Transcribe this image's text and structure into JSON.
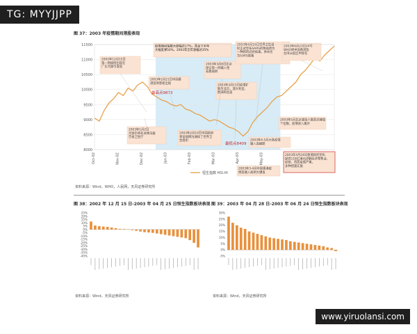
{
  "watermarks": {
    "top": "TG: MYYJJPP",
    "bottom": "www.yiruolansi.com"
  },
  "figures": {
    "fig37_title": "图 37：2003 年疫情期间港股表现",
    "fig37_source": "资料来源：Wind，WHO，人民网，天风证券研究所",
    "fig38_title": "图 38：2002 年 12 月 15 日-2003 年 04 月 25 日恒生指数板块表现",
    "fig38_source": "资料来源：Wind，天风证券研究所",
    "fig39_title": "图 39：2003 年 04 月 28 日-2003 年 06 月 24 日恒生指数板块表现",
    "fig39_source": "资料来源：Wind，天风证券研究所"
  },
  "colors": {
    "line": "#e8a14a",
    "bar": "#e8903c",
    "band": "#d7ecf7",
    "annotation_bg": "#fbe3d3",
    "highlight_border": "#c62828",
    "red_text": "#c62828"
  },
  "chart_data": [
    {
      "type": "line",
      "title": "",
      "ylim": [
        8000,
        11500
      ],
      "yticks": [
        "11500",
        "11000",
        "10500",
        "10000",
        "9500",
        "9000",
        "8500",
        "8000"
      ],
      "xticks": [
        "Oct-02",
        "Nov-02",
        "Dec-02",
        "Jan-03",
        "Feb-03",
        "Mar-03",
        "Apr-03",
        "May-03",
        "Jun-03",
        "Jul-03",
        "Aug-03"
      ],
      "legend": "恒生指数 HSI.HI",
      "series": [
        {
          "name": "恒生指数 HSI.HI",
          "x": [
            0,
            0.2,
            0.4,
            0.6,
            0.8,
            1.0,
            1.2,
            1.4,
            1.6,
            1.8,
            2.0,
            2.2,
            2.4,
            2.6,
            2.8,
            3.0,
            3.2,
            3.4,
            3.6,
            3.8,
            4.0,
            4.2,
            4.4,
            4.6,
            4.8,
            5.0,
            5.2,
            5.4,
            5.6,
            5.8,
            6.0,
            6.2,
            6.4,
            6.6,
            6.8,
            7.0,
            7.2,
            7.4,
            7.6,
            7.8,
            8.0,
            8.2,
            8.4,
            8.6,
            8.8,
            9.0,
            9.2,
            9.4,
            9.6,
            9.8,
            10.0
          ],
          "values": [
            9050,
            8950,
            9300,
            9550,
            9700,
            9900,
            9800,
            10050,
            9950,
            10150,
            10250,
            10100,
            9850,
            9750,
            9650,
            9600,
            9500,
            9450,
            9500,
            9350,
            9300,
            9200,
            9150,
            9050,
            8950,
            9000,
            8950,
            8850,
            8750,
            8700,
            8600,
            8450,
            8600,
            8900,
            9100,
            9250,
            9400,
            9600,
            9750,
            9800,
            9950,
            10100,
            10250,
            10500,
            10650,
            10850,
            11050,
            10950,
            11150,
            11300,
            11450
          ]
        }
      ],
      "annotations": [
        "2002年12月15日\n第一例病例出现在\n广东河源市发现",
        "疫情期间指数大跌幅达17%，而且下半年\n大幅反弹50%，2003年全年涨幅达35%",
        "2003年2月21日中国香\n港首例患者出现",
        "2003年3月6日北京\n接诊第一例输入性\n非典病例",
        "2003年3月15日疫情扩\n散至北京，澳大利亚、\n欧洲和北美",
        "2003年4月16日世界卫生组\n织正式宣布SARS的致病原为\n一种新的冠状病毒，并命名\n为SARS病毒",
        "2003年6月23日24号\nWHO将中国香港及\n台湾从疫区中除名",
        "最高点9873",
        "2003年1月2日\n河源市将有关情况报\n告省卫生厅",
        "2003年2月10日中国政府\n将该病情况通知了世界卫\n生组织",
        "最低点8409",
        "2003年3-4月中国香港疫\n情及输入病例大爆发",
        "2003年4-5月大陆疫情\n输入高峰期",
        "2003年5月北京感染人数到达峰值\n个位数，疫情进入尾声",
        "2003年4月24日香港政府宣布\n提供118亿港元纾解经济零售业、\n经营，然而疫情严重，\n多种措施实施"
      ]
    },
    {
      "type": "bar",
      "title": "",
      "ylim": [
        -40,
        25
      ],
      "yticks": [
        "25%",
        "20%",
        "15%",
        "10%",
        "5%",
        "0%",
        "-5%",
        "-10%",
        "-15%",
        "-20%",
        "-25%",
        "-30%",
        "-35%",
        "-40%"
      ],
      "categories": [
        "",
        "",
        "",
        "",
        "",
        "",
        "",
        "",
        "",
        "",
        "",
        "",
        "",
        "",
        "",
        "",
        "",
        "",
        "",
        "",
        "",
        "",
        "",
        "",
        "",
        "",
        ""
      ],
      "series": [
        {
          "values": [
            12,
            6,
            5,
            4.5,
            4,
            3,
            2,
            1,
            0.8,
            0.5,
            -1,
            -2,
            -3,
            -4,
            -4.5,
            -5,
            -6,
            -7,
            -8,
            -9,
            -10,
            -11,
            -12,
            -13,
            -16,
            -20,
            -27
          ]
        }
      ]
    },
    {
      "type": "bar",
      "title": "",
      "ylim": [
        -5,
        30
      ],
      "yticks": [
        "30%",
        "25%",
        "20%",
        "15%",
        "10%",
        "5%",
        "0%",
        "-5%"
      ],
      "categories": [
        "",
        "",
        "",
        "",
        "",
        "",
        "",
        "",
        "",
        "",
        "",
        "",
        "",
        "",
        "",
        "",
        "",
        "",
        "",
        "",
        "",
        "",
        "",
        "",
        "",
        "",
        ""
      ],
      "series": [
        {
          "values": [
            27,
            22,
            20,
            18,
            17,
            15,
            14,
            13,
            12,
            11,
            10,
            9.5,
            9,
            8.5,
            8,
            7,
            6.5,
            6,
            5.5,
            5,
            4.5,
            4,
            3.5,
            3,
            2,
            1.5,
            -1
          ]
        }
      ]
    }
  ]
}
